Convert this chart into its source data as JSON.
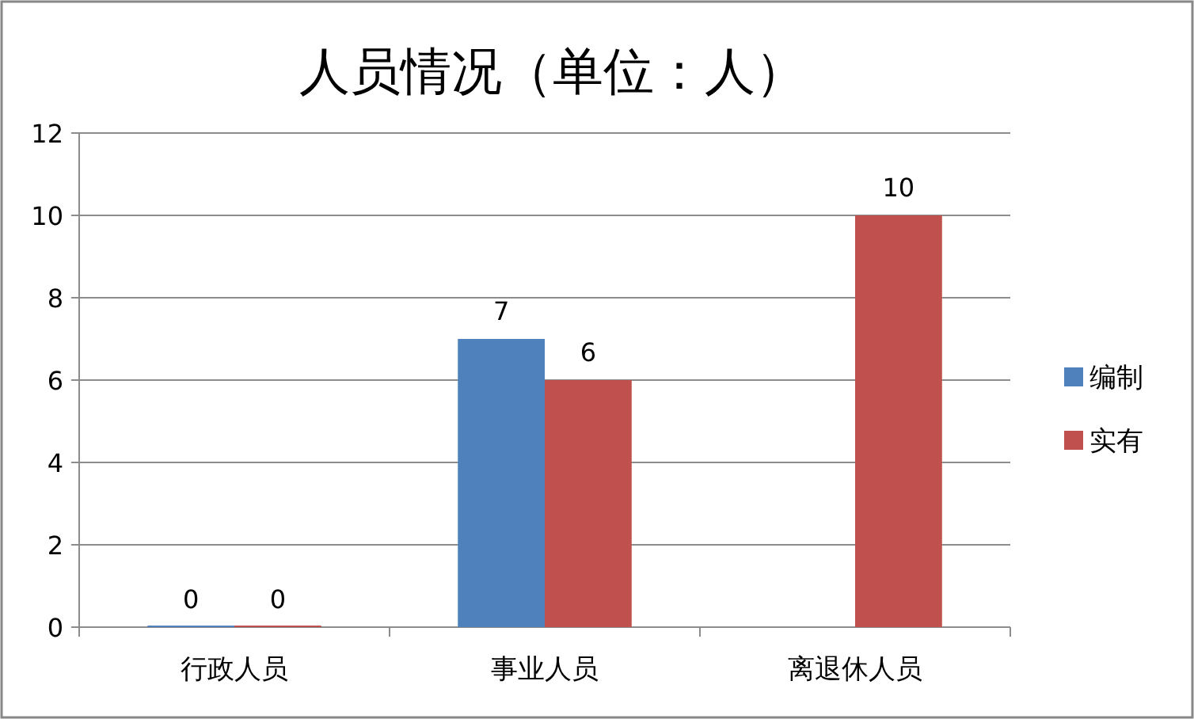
{
  "chart_data": {
    "type": "bar",
    "title": "人员情况（单位：人）",
    "categories": [
      "行政人员",
      "事业人员",
      "离退休人员"
    ],
    "series": [
      {
        "name": "编制",
        "color": "#4f81bd",
        "values": [
          0,
          7,
          null
        ]
      },
      {
        "name": "实有",
        "color": "#c0504d",
        "values": [
          0,
          6,
          10
        ]
      }
    ],
    "ylim": [
      0,
      12
    ],
    "yticks": [
      0,
      2,
      4,
      6,
      8,
      10,
      12
    ],
    "grid": "y",
    "legend": "right",
    "data_labels": true
  }
}
